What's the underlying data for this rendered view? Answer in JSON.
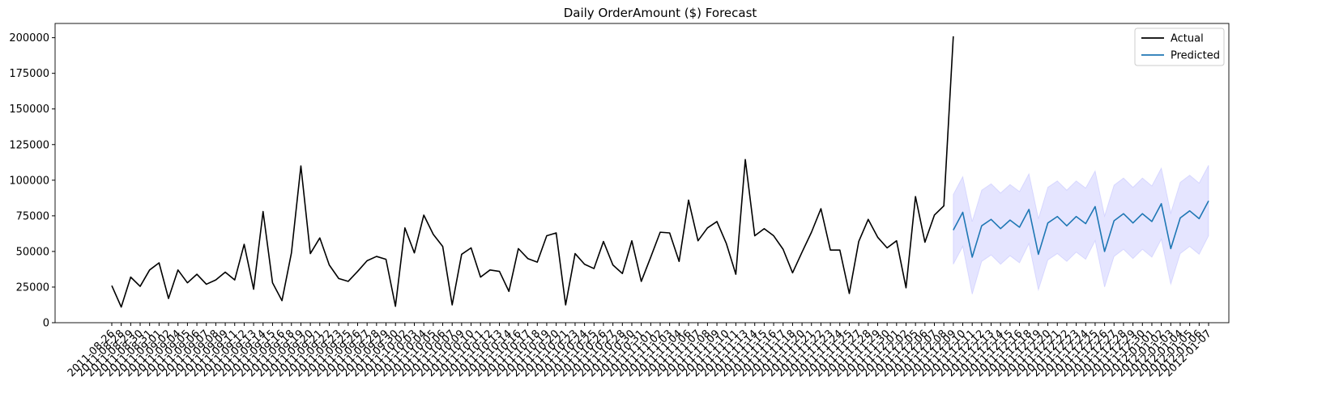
{
  "chart_data": {
    "type": "line",
    "title": "Daily OrderAmount ($) Forecast",
    "categories": [
      "2011-08-26",
      "2011-08-28",
      "2011-08-29",
      "2011-08-30",
      "2011-08-31",
      "2011-09-01",
      "2011-09-02",
      "2011-09-04",
      "2011-09-05",
      "2011-09-06",
      "2011-09-07",
      "2011-09-08",
      "2011-09-09",
      "2011-09-11",
      "2011-09-12",
      "2011-09-13",
      "2011-09-14",
      "2011-09-15",
      "2011-09-16",
      "2011-09-18",
      "2011-09-19",
      "2011-09-20",
      "2011-09-21",
      "2011-09-22",
      "2011-09-23",
      "2011-09-25",
      "2011-09-26",
      "2011-09-27",
      "2011-09-28",
      "2011-09-29",
      "2011-09-30",
      "2011-10-02",
      "2011-10-03",
      "2011-10-04",
      "2011-10-05",
      "2011-10-06",
      "2011-10-07",
      "2011-10-09",
      "2011-10-10",
      "2011-10-11",
      "2011-10-12",
      "2011-10-13",
      "2011-10-14",
      "2011-10-16",
      "2011-10-17",
      "2011-10-18",
      "2011-10-19",
      "2011-10-20",
      "2011-10-21",
      "2011-10-23",
      "2011-10-24",
      "2011-10-25",
      "2011-10-26",
      "2011-10-27",
      "2011-10-28",
      "2011-10-30",
      "2011-10-31",
      "2011-11-01",
      "2011-11-02",
      "2011-11-03",
      "2011-11-04",
      "2011-11-06",
      "2011-11-07",
      "2011-11-08",
      "2011-11-09",
      "2011-11-10",
      "2011-11-11",
      "2011-11-13",
      "2011-11-14",
      "2011-11-15",
      "2011-11-16",
      "2011-11-17",
      "2011-11-18",
      "2011-11-20",
      "2011-11-21",
      "2011-11-22",
      "2011-11-23",
      "2011-11-24",
      "2011-11-25",
      "2011-11-27",
      "2011-11-28",
      "2011-11-29",
      "2011-11-30",
      "2011-12-01",
      "2011-12-02",
      "2011-12-05",
      "2011-12-06",
      "2011-12-07",
      "2011-12-08",
      "2011-12-09",
      "2011-12-10",
      "2011-12-11",
      "2011-12-12",
      "2011-12-13",
      "2011-12-14",
      "2011-12-15",
      "2011-12-16",
      "2011-12-18",
      "2011-12-19",
      "2011-12-20",
      "2011-12-21",
      "2011-12-22",
      "2011-12-23",
      "2011-12-24",
      "2011-12-25",
      "2011-12-26",
      "2011-12-27",
      "2011-12-28",
      "2011-12-29",
      "2011-12-30",
      "2012-01-01",
      "2012-01-02",
      "2012-01-03",
      "2012-01-04",
      "2012-01-05",
      "2012-01-06",
      "2012-01-07"
    ],
    "series": [
      {
        "name": "Actual",
        "color": "#000000",
        "values": [
          26000,
          11000,
          32000,
          25500,
          37000,
          42000,
          17000,
          37000,
          28000,
          34000,
          27000,
          30000,
          35500,
          30000,
          55000,
          23500,
          78000,
          28000,
          15500,
          49000,
          110000,
          48500,
          59500,
          40500,
          31000,
          29000,
          36000,
          43500,
          46500,
          44500,
          11500,
          66500,
          49000,
          75500,
          62000,
          53500,
          12500,
          48000,
          52500,
          32000,
          37000,
          36000,
          22000,
          52000,
          45000,
          42500,
          61000,
          63000,
          12500,
          48500,
          41000,
          38000,
          57000,
          40500,
          34500,
          57500,
          29000,
          46000,
          63500,
          63000,
          43000,
          86000,
          57500,
          66500,
          71000,
          55500,
          34000,
          114500,
          61000,
          66000,
          61000,
          51500,
          35000,
          49500,
          63500,
          80000,
          51000,
          51000,
          20500,
          57000,
          72500,
          60000,
          52500,
          57500,
          24500,
          88500,
          56500,
          75500,
          82000,
          201000,
          null,
          null,
          null,
          null,
          null,
          null,
          null,
          null,
          null,
          null,
          null,
          null,
          null,
          null,
          null,
          null,
          null,
          null,
          null,
          null,
          null,
          null,
          null,
          null,
          null,
          null,
          null
        ]
      },
      {
        "name": "Predicted",
        "color": "#1f77b4",
        "band_color": "#0000ff",
        "values": [
          null,
          null,
          null,
          null,
          null,
          null,
          null,
          null,
          null,
          null,
          null,
          null,
          null,
          null,
          null,
          null,
          null,
          null,
          null,
          null,
          null,
          null,
          null,
          null,
          null,
          null,
          null,
          null,
          null,
          null,
          null,
          null,
          null,
          null,
          null,
          null,
          null,
          null,
          null,
          null,
          null,
          null,
          null,
          null,
          null,
          null,
          null,
          null,
          null,
          null,
          null,
          null,
          null,
          null,
          null,
          null,
          null,
          null,
          null,
          null,
          null,
          null,
          null,
          null,
          null,
          null,
          null,
          null,
          null,
          null,
          null,
          null,
          null,
          null,
          null,
          null,
          null,
          null,
          null,
          null,
          null,
          null,
          null,
          null,
          null,
          null,
          null,
          null,
          null,
          65000,
          77500,
          46000,
          68000,
          72500,
          66000,
          72000,
          67000,
          79500,
          48000,
          70000,
          74500,
          68000,
          74500,
          69500,
          81500,
          50000,
          71500,
          76500,
          70000,
          76500,
          71000,
          83500,
          52000,
          73500,
          78500,
          73000,
          85500
        ],
        "upper": [
          null,
          null,
          null,
          null,
          null,
          null,
          null,
          null,
          null,
          null,
          null,
          null,
          null,
          null,
          null,
          null,
          null,
          null,
          null,
          null,
          null,
          null,
          null,
          null,
          null,
          null,
          null,
          null,
          null,
          null,
          null,
          null,
          null,
          null,
          null,
          null,
          null,
          null,
          null,
          null,
          null,
          null,
          null,
          null,
          null,
          null,
          null,
          null,
          null,
          null,
          null,
          null,
          null,
          null,
          null,
          null,
          null,
          null,
          null,
          null,
          null,
          null,
          null,
          null,
          null,
          null,
          null,
          null,
          null,
          null,
          null,
          null,
          null,
          null,
          null,
          null,
          null,
          null,
          null,
          null,
          null,
          null,
          null,
          null,
          null,
          null,
          null,
          null,
          null,
          90000,
          102500,
          71000,
          93000,
          97500,
          91000,
          97000,
          92000,
          104500,
          73000,
          95000,
          99500,
          93000,
          99500,
          94500,
          106500,
          75000,
          96500,
          101500,
          95000,
          101500,
          96000,
          108500,
          77000,
          98500,
          103500,
          98000,
          110500
        ],
        "lower": [
          null,
          null,
          null,
          null,
          null,
          null,
          null,
          null,
          null,
          null,
          null,
          null,
          null,
          null,
          null,
          null,
          null,
          null,
          null,
          null,
          null,
          null,
          null,
          null,
          null,
          null,
          null,
          null,
          null,
          null,
          null,
          null,
          null,
          null,
          null,
          null,
          null,
          null,
          null,
          null,
          null,
          null,
          null,
          null,
          null,
          null,
          null,
          null,
          null,
          null,
          null,
          null,
          null,
          null,
          null,
          null,
          null,
          null,
          null,
          null,
          null,
          null,
          null,
          null,
          null,
          null,
          null,
          null,
          null,
          null,
          null,
          null,
          null,
          null,
          null,
          null,
          null,
          null,
          null,
          null,
          null,
          null,
          null,
          null,
          null,
          null,
          null,
          null,
          null,
          41000,
          53500,
          20000,
          43000,
          47500,
          41000,
          47000,
          42000,
          55500,
          23000,
          44000,
          48500,
          43000,
          49500,
          44500,
          57500,
          25000,
          46500,
          51500,
          45000,
          51500,
          46000,
          58500,
          27000,
          48500,
          53500,
          48000,
          61000
        ]
      }
    ],
    "ylim": [
      0,
      210000
    ],
    "yticks": [
      0,
      25000,
      50000,
      75000,
      100000,
      125000,
      150000,
      175000,
      200000
    ],
    "legend": "upper right"
  }
}
